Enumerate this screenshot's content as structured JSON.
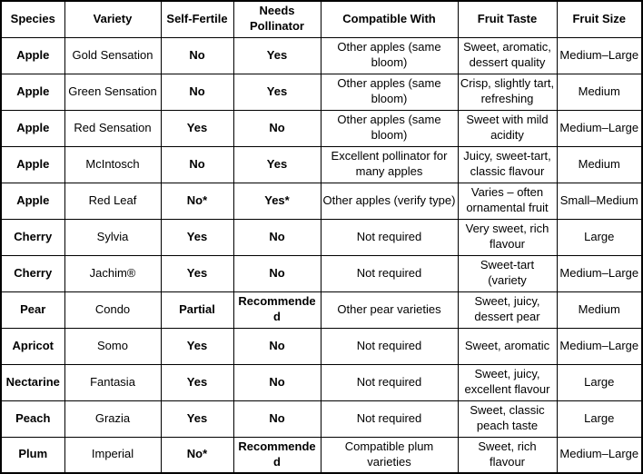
{
  "colors": {
    "border": "#000000",
    "text": "#000000",
    "background": "#ffffff"
  },
  "table": {
    "headers": {
      "species": "Species",
      "variety": "Variety",
      "self_fertile": "Self-Fertile",
      "needs_pollinator": "Needs Pollinator",
      "compatible_with": "Compatible With",
      "fruit_taste": "Fruit Taste",
      "fruit_size": "Fruit Size"
    },
    "rows": [
      {
        "species": "Apple",
        "variety": "Gold Sensation",
        "self_fertile": "No",
        "needs_pollinator": "Yes",
        "compatible_with": "Other apples (same bloom)",
        "fruit_taste": "Sweet, aromatic, dessert quality",
        "fruit_size": "Medium–Large"
      },
      {
        "species": "Apple",
        "variety": "Green Sensation",
        "self_fertile": "No",
        "needs_pollinator": "Yes",
        "compatible_with": "Other apples (same bloom)",
        "fruit_taste": "Crisp, slightly tart, refreshing",
        "fruit_size": "Medium"
      },
      {
        "species": "Apple",
        "variety": "Red Sensation",
        "self_fertile": "Yes",
        "needs_pollinator": "No",
        "compatible_with": "Other apples (same bloom)",
        "fruit_taste": "Sweet with mild acidity",
        "fruit_size": "Medium–Large"
      },
      {
        "species": "Apple",
        "variety": "McIntosch",
        "self_fertile": "No",
        "needs_pollinator": "Yes",
        "compatible_with": "Excellent pollinator for many apples",
        "fruit_taste": "Juicy, sweet-tart, classic flavour",
        "fruit_size": "Medium"
      },
      {
        "species": "Apple",
        "variety": "Red Leaf",
        "self_fertile": "No*",
        "needs_pollinator": "Yes*",
        "compatible_with": "Other apples (verify type)",
        "fruit_taste": "Varies – often ornamental fruit",
        "fruit_size": "Small–Medium"
      },
      {
        "species": "Cherry",
        "variety": "Sylvia",
        "self_fertile": "Yes",
        "needs_pollinator": "No",
        "compatible_with": "Not required",
        "fruit_taste": "Very sweet, rich flavour",
        "fruit_size": "Large"
      },
      {
        "species": "Cherry",
        "variety": "Jachim®",
        "self_fertile": "Yes",
        "needs_pollinator": "No",
        "compatible_with": "Not required",
        "fruit_taste": "Sweet-tart (variety",
        "fruit_size": "Medium–Large"
      },
      {
        "species": "Pear",
        "variety": "Condo",
        "self_fertile": "Partial",
        "needs_pollinator": "Recommended",
        "compatible_with": "Other pear varieties",
        "fruit_taste": "Sweet, juicy, dessert pear",
        "fruit_size": "Medium"
      },
      {
        "species": "Apricot",
        "variety": "Somo",
        "self_fertile": "Yes",
        "needs_pollinator": "No",
        "compatible_with": "Not required",
        "fruit_taste": "Sweet, aromatic",
        "fruit_size": "Medium–Large"
      },
      {
        "species": "Nectarine",
        "variety": "Fantasia",
        "self_fertile": "Yes",
        "needs_pollinator": "No",
        "compatible_with": "Not required",
        "fruit_taste": "Sweet, juicy, excellent flavour",
        "fruit_size": "Large"
      },
      {
        "species": "Peach",
        "variety": "Grazia",
        "self_fertile": "Yes",
        "needs_pollinator": "No",
        "compatible_with": "Not required",
        "fruit_taste": "Sweet, classic peach taste",
        "fruit_size": "Large"
      },
      {
        "species": "Plum",
        "variety": "Imperial",
        "self_fertile": "No*",
        "needs_pollinator": "Recommended",
        "compatible_with": "Compatible plum varieties",
        "fruit_taste": "Sweet, rich flavour",
        "fruit_size": "Medium–Large"
      }
    ]
  }
}
